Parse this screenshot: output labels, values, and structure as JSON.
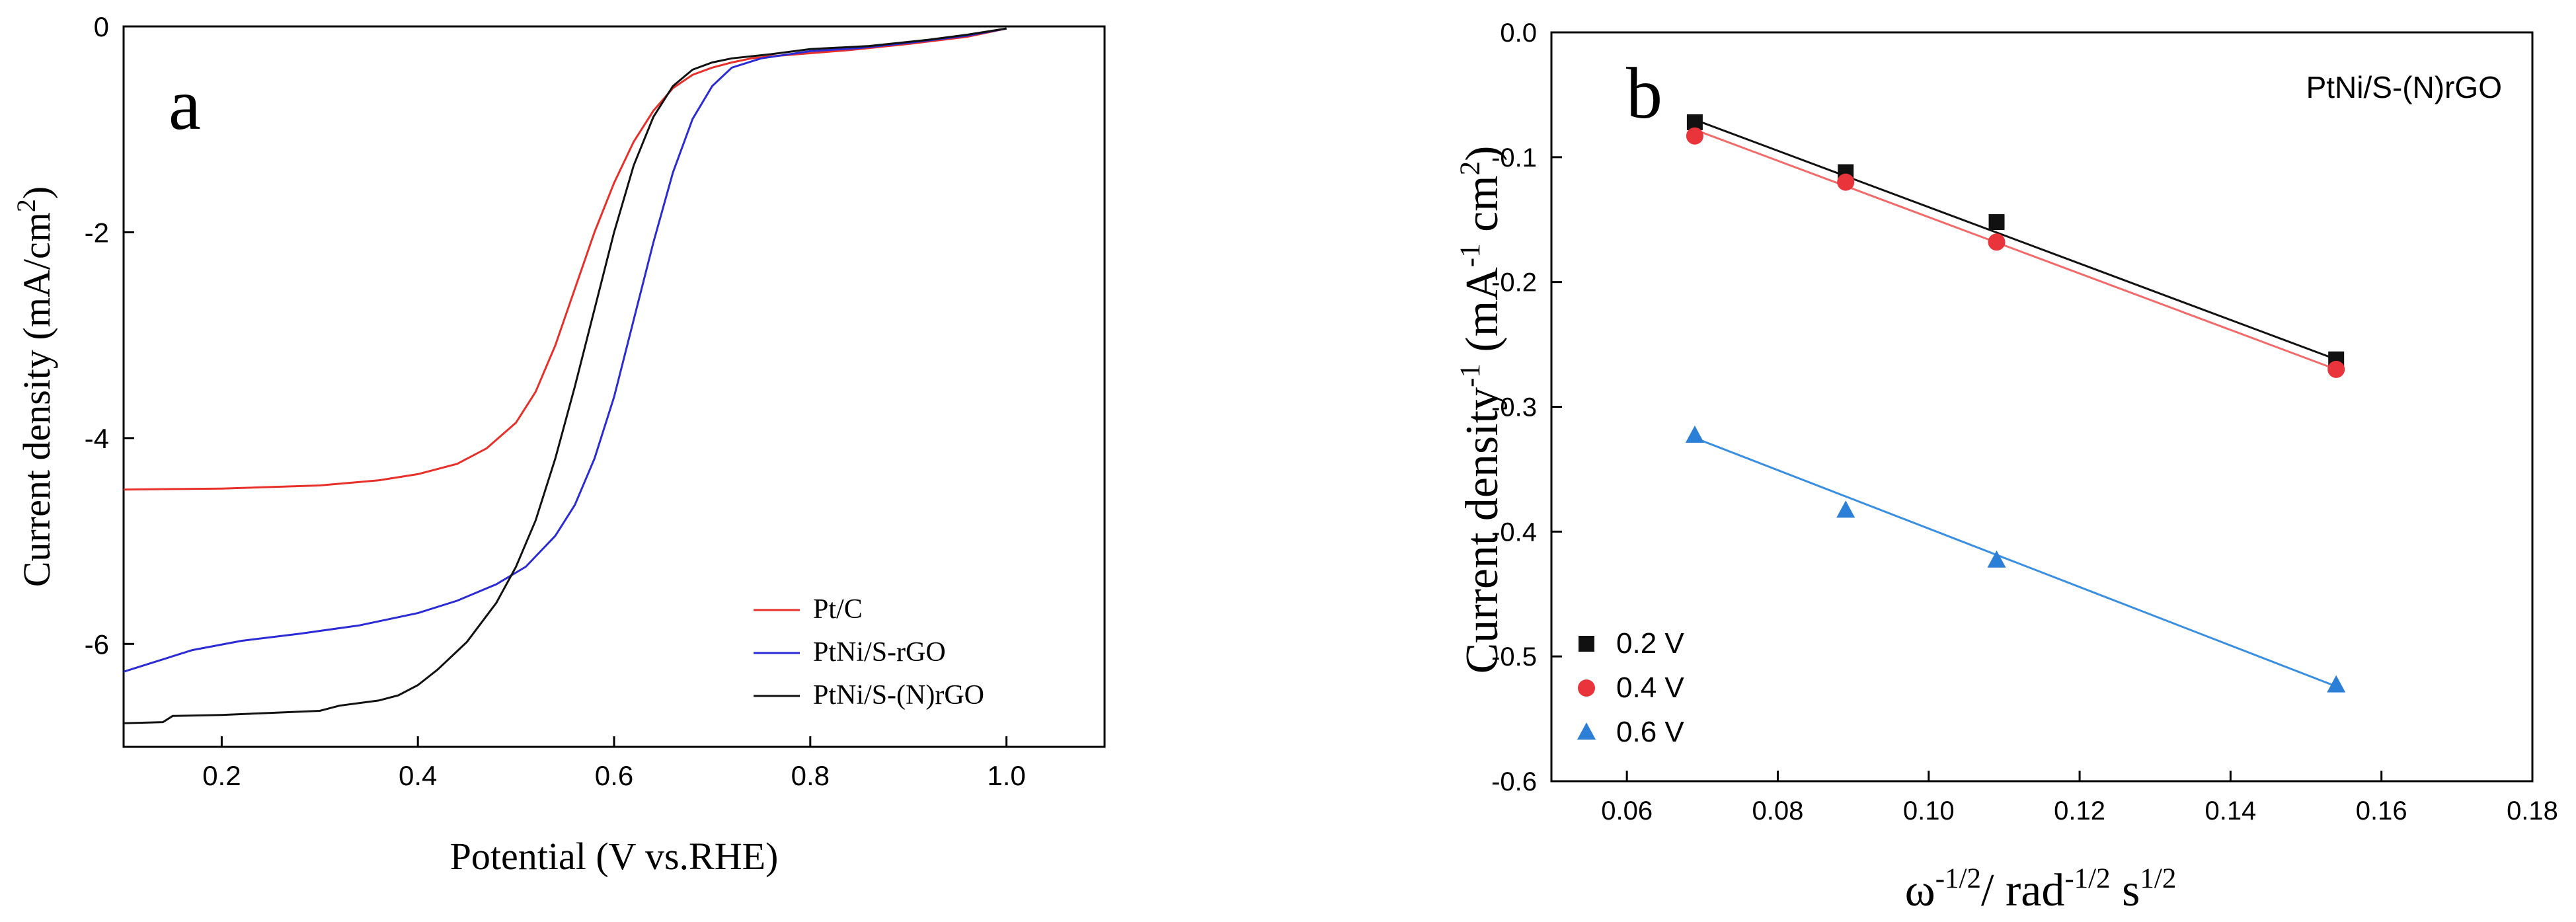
{
  "chart_data": [
    {
      "type": "line",
      "panel_label": "a",
      "xlabel": "Potential (V vs.RHE)",
      "ylabel_main": "Current density (mA/cm",
      "ylabel_sup": "2",
      "ylabel_tail": ")",
      "xlim": [
        0.1,
        1.1
      ],
      "ylim": [
        -7.0,
        0.0
      ],
      "x_ticks": [
        0.2,
        0.4,
        0.6,
        0.8,
        1.0
      ],
      "x_tick_labels": [
        "0.2",
        "0.4",
        "0.6",
        "0.8",
        "1.0"
      ],
      "y_ticks": [
        0,
        -2,
        -4,
        -6
      ],
      "y_tick_labels": [
        "0",
        "-2",
        "-4",
        "-6"
      ],
      "legend_position": "bottom-right",
      "series": [
        {
          "name": "Pt/C",
          "color": "#e8302a",
          "points": [
            [
              0.1,
              -4.5
            ],
            [
              0.2,
              -4.49
            ],
            [
              0.3,
              -4.46
            ],
            [
              0.36,
              -4.41
            ],
            [
              0.4,
              -4.35
            ],
            [
              0.44,
              -4.25
            ],
            [
              0.47,
              -4.1
            ],
            [
              0.5,
              -3.85
            ],
            [
              0.52,
              -3.55
            ],
            [
              0.54,
              -3.1
            ],
            [
              0.56,
              -2.55
            ],
            [
              0.58,
              -2.0
            ],
            [
              0.6,
              -1.52
            ],
            [
              0.62,
              -1.12
            ],
            [
              0.64,
              -0.82
            ],
            [
              0.66,
              -0.6
            ],
            [
              0.68,
              -0.47
            ],
            [
              0.7,
              -0.4
            ],
            [
              0.72,
              -0.35
            ],
            [
              0.74,
              -0.31
            ],
            [
              0.76,
              -0.29
            ],
            [
              0.8,
              -0.26
            ],
            [
              0.84,
              -0.23
            ],
            [
              0.9,
              -0.17
            ],
            [
              0.96,
              -0.1
            ],
            [
              1.0,
              -0.02
            ]
          ]
        },
        {
          "name": "PtNi/S-rGO",
          "color": "#2b2bd6",
          "points": [
            [
              0.1,
              -6.27
            ],
            [
              0.13,
              -6.18
            ],
            [
              0.17,
              -6.06
            ],
            [
              0.22,
              -5.97
            ],
            [
              0.28,
              -5.9
            ],
            [
              0.34,
              -5.82
            ],
            [
              0.4,
              -5.7
            ],
            [
              0.44,
              -5.58
            ],
            [
              0.48,
              -5.42
            ],
            [
              0.51,
              -5.25
            ],
            [
              0.54,
              -4.95
            ],
            [
              0.56,
              -4.65
            ],
            [
              0.58,
              -4.2
            ],
            [
              0.6,
              -3.6
            ],
            [
              0.62,
              -2.85
            ],
            [
              0.64,
              -2.1
            ],
            [
              0.66,
              -1.42
            ],
            [
              0.68,
              -0.9
            ],
            [
              0.7,
              -0.58
            ],
            [
              0.72,
              -0.4
            ],
            [
              0.75,
              -0.31
            ],
            [
              0.8,
              -0.24
            ],
            [
              0.85,
              -0.21
            ],
            [
              0.9,
              -0.16
            ],
            [
              0.96,
              -0.09
            ],
            [
              1.0,
              -0.02
            ]
          ]
        },
        {
          "name": "PtNi/S-(N)rGO",
          "color": "#111111",
          "points": [
            [
              0.1,
              -6.77
            ],
            [
              0.14,
              -6.76
            ],
            [
              0.15,
              -6.7
            ],
            [
              0.2,
              -6.69
            ],
            [
              0.25,
              -6.67
            ],
            [
              0.3,
              -6.65
            ],
            [
              0.32,
              -6.6
            ],
            [
              0.36,
              -6.55
            ],
            [
              0.38,
              -6.5
            ],
            [
              0.4,
              -6.4
            ],
            [
              0.42,
              -6.25
            ],
            [
              0.45,
              -5.98
            ],
            [
              0.48,
              -5.6
            ],
            [
              0.5,
              -5.25
            ],
            [
              0.52,
              -4.8
            ],
            [
              0.54,
              -4.2
            ],
            [
              0.56,
              -3.5
            ],
            [
              0.58,
              -2.75
            ],
            [
              0.6,
              -2.0
            ],
            [
              0.62,
              -1.35
            ],
            [
              0.64,
              -0.88
            ],
            [
              0.66,
              -0.58
            ],
            [
              0.68,
              -0.42
            ],
            [
              0.7,
              -0.35
            ],
            [
              0.72,
              -0.31
            ],
            [
              0.76,
              -0.27
            ],
            [
              0.8,
              -0.22
            ],
            [
              0.86,
              -0.19
            ],
            [
              0.92,
              -0.13
            ],
            [
              0.96,
              -0.08
            ],
            [
              1.0,
              -0.02
            ]
          ]
        }
      ]
    },
    {
      "type": "scatter",
      "panel_label": "b",
      "annotation": "PtNi/S-(N)rGO",
      "xlabel_parts": [
        {
          "t": "ω",
          "sup": false
        },
        {
          "t": "-1/2",
          "sup": true
        },
        {
          "t": "/ rad",
          "sup": false
        },
        {
          "t": "-1/2",
          "sup": true
        },
        {
          "t": " s",
          "sup": false
        },
        {
          "t": "1/2",
          "sup": true
        }
      ],
      "ylabel_parts": [
        {
          "t": "Current density",
          "sup": false
        },
        {
          "t": "-1",
          "sup": true
        },
        {
          "t": " (mA",
          "sup": false
        },
        {
          "t": "-1",
          "sup": true
        },
        {
          "t": " cm",
          "sup": false
        },
        {
          "t": "2",
          "sup": true
        },
        {
          "t": ")",
          "sup": false
        }
      ],
      "xlim": [
        0.05,
        0.18
      ],
      "ylim": [
        -0.6,
        0.0
      ],
      "x_ticks": [
        0.06,
        0.08,
        0.1,
        0.12,
        0.14,
        0.16,
        0.18
      ],
      "x_tick_labels": [
        "0.06",
        "0.08",
        "0.10",
        "0.12",
        "0.14",
        "0.16",
        "0.18"
      ],
      "y_ticks": [
        0.0,
        -0.1,
        -0.2,
        -0.3,
        -0.4,
        -0.5,
        -0.6
      ],
      "y_tick_labels": [
        "0.0",
        "-0.1",
        "-0.2",
        "-0.3",
        "-0.4",
        "-0.5",
        "-0.6"
      ],
      "legend_position": "bottom-left",
      "series": [
        {
          "name": "0.2 V",
          "marker": "square",
          "color": "#111111",
          "line_color": "#111111",
          "x": [
            0.069,
            0.089,
            0.109,
            0.154
          ],
          "y": [
            -0.072,
            -0.112,
            -0.152,
            -0.262
          ],
          "fit": [
            [
              0.069,
              -0.07
            ],
            [
              0.154,
              -0.262
            ]
          ]
        },
        {
          "name": "0.4 V",
          "marker": "circle",
          "color": "#e8343a",
          "line_color": "#f26a6a",
          "x": [
            0.069,
            0.089,
            0.109,
            0.154
          ],
          "y": [
            -0.083,
            -0.12,
            -0.168,
            -0.27
          ],
          "fit": [
            [
              0.069,
              -0.078
            ],
            [
              0.154,
              -0.27
            ]
          ]
        },
        {
          "name": "0.6 V",
          "marker": "triangle",
          "color": "#2c7fd6",
          "line_color": "#3a8fe0",
          "x": [
            0.069,
            0.089,
            0.109,
            0.154
          ],
          "y": [
            -0.323,
            -0.383,
            -0.423,
            -0.523
          ],
          "fit": [
            [
              0.069,
              -0.325
            ],
            [
              0.154,
              -0.524
            ]
          ]
        }
      ]
    }
  ]
}
